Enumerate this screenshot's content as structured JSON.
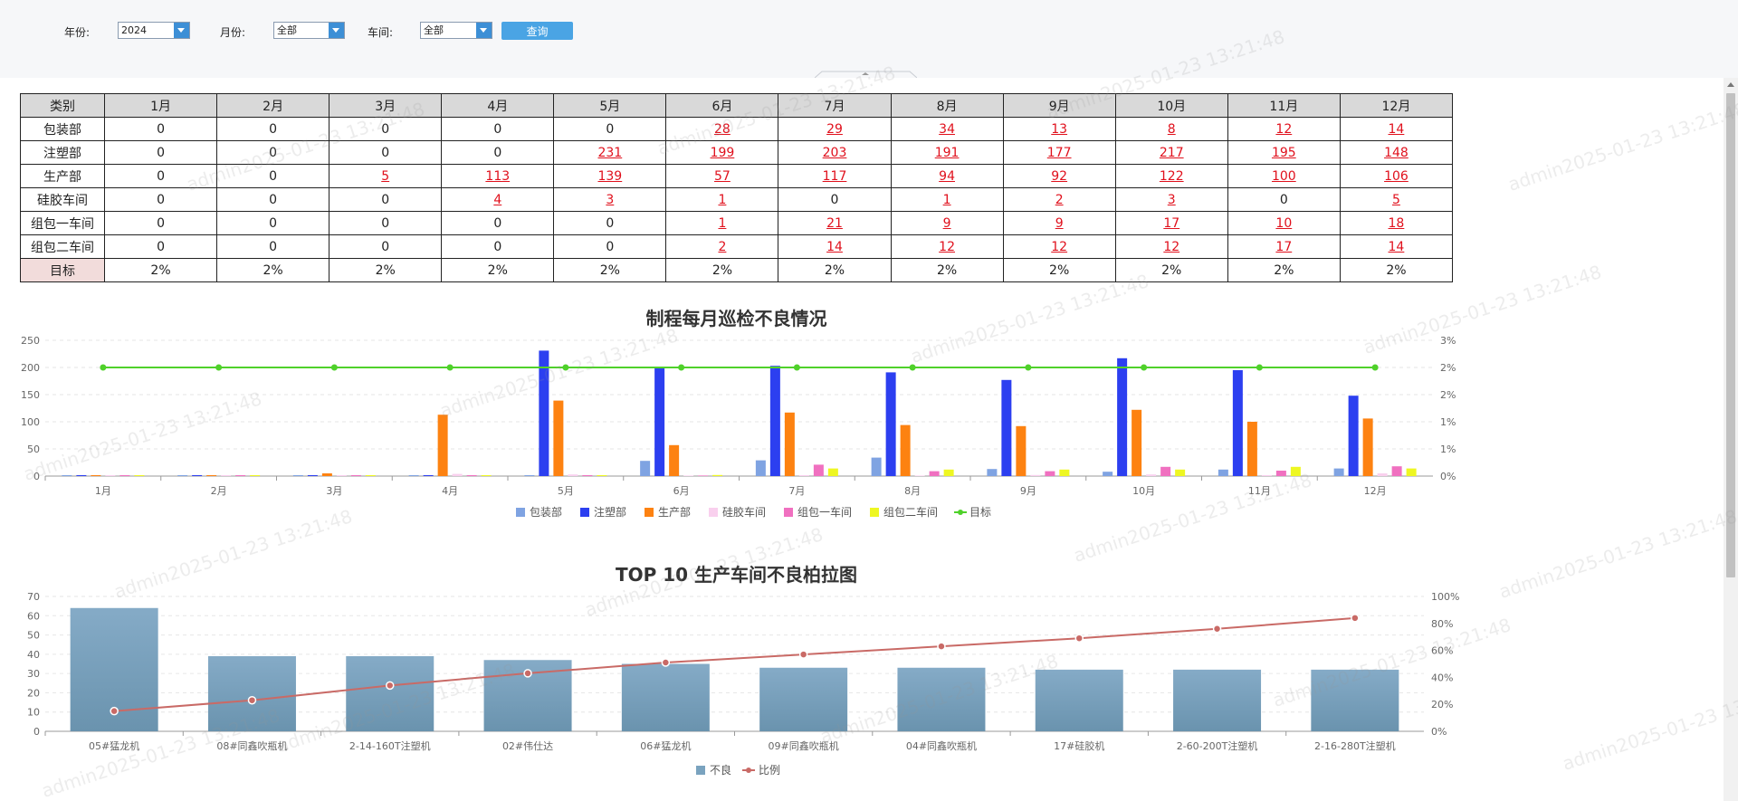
{
  "filters": {
    "year_label": "年份:",
    "year_value": "2024",
    "month_label": "月份:",
    "month_value": "全部",
    "workshop_label": "车间:",
    "workshop_value": "全部",
    "query_button": "查询"
  },
  "table": {
    "header": [
      "类别",
      "1月",
      "2月",
      "3月",
      "4月",
      "5月",
      "6月",
      "7月",
      "8月",
      "9月",
      "10月",
      "11月",
      "12月"
    ],
    "rows": [
      {
        "category": "包装部",
        "values": [
          0,
          0,
          0,
          0,
          0,
          28,
          29,
          34,
          13,
          8,
          12,
          14
        ]
      },
      {
        "category": "注塑部",
        "values": [
          0,
          0,
          0,
          0,
          231,
          199,
          203,
          191,
          177,
          217,
          195,
          148
        ]
      },
      {
        "category": "生产部",
        "values": [
          0,
          0,
          5,
          113,
          139,
          57,
          117,
          94,
          92,
          122,
          100,
          106
        ]
      },
      {
        "category": "硅胶车间",
        "values": [
          0,
          0,
          0,
          4,
          3,
          1,
          0,
          1,
          2,
          3,
          0,
          5
        ]
      },
      {
        "category": "组包一车间",
        "values": [
          0,
          0,
          0,
          0,
          0,
          1,
          21,
          9,
          9,
          17,
          10,
          18
        ]
      },
      {
        "category": "组包二车间",
        "values": [
          0,
          0,
          0,
          0,
          0,
          2,
          14,
          12,
          12,
          12,
          17,
          14
        ]
      }
    ],
    "target_row": {
      "category": "目标",
      "values": [
        "2%",
        "2%",
        "2%",
        "2%",
        "2%",
        "2%",
        "2%",
        "2%",
        "2%",
        "2%",
        "2%",
        "2%"
      ]
    }
  },
  "chart_data": [
    {
      "type": "bar",
      "title": "制程每月巡检不良情况",
      "categories": [
        "1月",
        "2月",
        "3月",
        "4月",
        "5月",
        "6月",
        "7月",
        "8月",
        "9月",
        "10月",
        "11月",
        "12月"
      ],
      "series": [
        {
          "name": "包装部",
          "color": "#7fa3e2",
          "values": [
            0,
            0,
            0,
            0,
            0,
            28,
            29,
            34,
            13,
            8,
            12,
            14
          ]
        },
        {
          "name": "注塑部",
          "color": "#2c3ff0",
          "values": [
            0,
            0,
            0,
            0,
            231,
            199,
            203,
            191,
            177,
            217,
            195,
            148
          ]
        },
        {
          "name": "生产部",
          "color": "#fd8211",
          "values": [
            0,
            0,
            5,
            113,
            139,
            57,
            117,
            94,
            92,
            122,
            100,
            106
          ]
        },
        {
          "name": "硅胶车间",
          "color": "#f9d0ee",
          "values": [
            0,
            0,
            0,
            4,
            3,
            1,
            0,
            1,
            2,
            3,
            0,
            5
          ]
        },
        {
          "name": "组包一车间",
          "color": "#f070c0",
          "values": [
            0,
            0,
            0,
            0,
            0,
            1,
            21,
            9,
            9,
            17,
            10,
            18
          ]
        },
        {
          "name": "组包二车间",
          "color": "#eef722",
          "values": [
            0,
            0,
            0,
            0,
            0,
            2,
            14,
            12,
            12,
            12,
            17,
            14
          ]
        }
      ],
      "line_series": {
        "name": "目标",
        "color": "#4fd12a",
        "values": [
          2,
          2,
          2,
          2,
          2,
          2,
          2,
          2,
          2,
          2,
          2,
          2
        ]
      },
      "y_left_ticks": [
        "0",
        "50",
        "100",
        "150",
        "200",
        "250"
      ],
      "y_left_range": [
        0,
        250
      ],
      "y_right_ticks": [
        "0%",
        "1%",
        "1%",
        "2%",
        "2%",
        "3%"
      ],
      "y_right_range": [
        0,
        2.5
      ],
      "legend": "bottom-center",
      "grid": true
    },
    {
      "type": "bar",
      "title": "TOP 10 生产车间不良柏拉图",
      "categories": [
        "05#猛龙机",
        "08#同鑫吹瓶机",
        "2-14-160T注塑机",
        "02#伟仕达",
        "06#猛龙机",
        "09#同鑫吹瓶机",
        "04#同鑫吹瓶机",
        "17#硅胶机",
        "2-60-200T注塑机",
        "2-16-280T注塑机"
      ],
      "series": [
        {
          "name": "不良",
          "color": "#7aa3bf",
          "values": [
            64,
            39,
            39,
            37,
            35,
            33,
            33,
            32,
            32,
            32
          ]
        }
      ],
      "line_series": {
        "name": "比例",
        "color": "#c96a66",
        "values": [
          15,
          23,
          34,
          43,
          51,
          57,
          63,
          69,
          76,
          84
        ]
      },
      "y_left_ticks": [
        "0",
        "10",
        "20",
        "30",
        "40",
        "50",
        "60",
        "70"
      ],
      "y_left_range": [
        0,
        70
      ],
      "y_right_ticks": [
        "0%",
        "20%",
        "40%",
        "60%",
        "80%",
        "100%"
      ],
      "y_right_range": [
        0,
        100
      ],
      "legend": "bottom-center",
      "grid": true
    }
  ],
  "watermark_text": "admin2025-01-23 13:21:48"
}
